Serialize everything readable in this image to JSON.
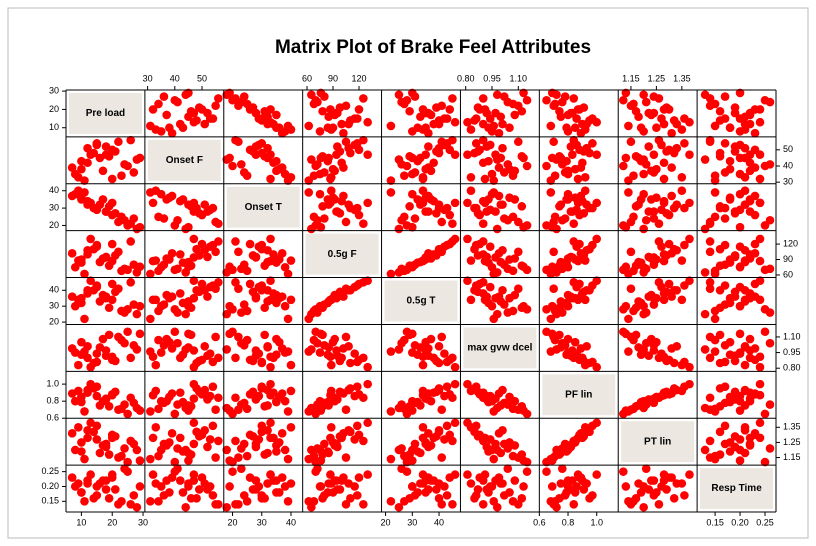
{
  "chart_data": {
    "type": "scatter_matrix",
    "title": "Matrix Plot of Brake Feel Attributes",
    "color": "#ff0000",
    "variables": [
      {
        "name": "Pre load",
        "lim": [
          5,
          30.6
        ],
        "ticks": [
          10,
          20,
          30
        ],
        "values": [
          8,
          10,
          12,
          14,
          16,
          18,
          20,
          22,
          25,
          28,
          27,
          9,
          11,
          13,
          15,
          17,
          19,
          21,
          24,
          26,
          7,
          10,
          12,
          23,
          15,
          18,
          29,
          20
        ]
      },
      {
        "name": "Onset F",
        "lim": [
          29,
          58
        ],
        "ticks": [
          30,
          40,
          50
        ],
        "values": [
          35,
          38,
          42,
          48,
          45,
          52,
          50,
          55,
          40,
          44,
          36,
          33,
          31,
          47,
          53,
          37,
          46,
          49,
          41,
          56,
          39,
          43,
          51,
          34,
          54,
          47,
          45,
          32
        ]
      },
      {
        "name": "Onset T",
        "lim": [
          17,
          44
        ],
        "ticks": [
          20,
          30,
          40
        ],
        "values": [
          38,
          36,
          34,
          30,
          32,
          28,
          26,
          22,
          20,
          18,
          24,
          40,
          39,
          33,
          29,
          35,
          31,
          27,
          23,
          21,
          37,
          35,
          32,
          25,
          30,
          28,
          19,
          33
        ]
      },
      {
        "name": "0.5g F",
        "lim": [
          55,
          146
        ],
        "ticks": [
          60,
          90,
          120
        ],
        "values": [
          75,
          90,
          100,
          110,
          85,
          95,
          120,
          105,
          70,
          65,
          80,
          88,
          62,
          130,
          115,
          92,
          78,
          98,
          72,
          125,
          102,
          84,
          108,
          68,
          118,
          94,
          76,
          87
        ]
      },
      {
        "name": "0.5g T",
        "lim": [
          18.5,
          48
        ],
        "ticks": [
          20,
          30,
          40
        ],
        "values": [
          30,
          35,
          38,
          40,
          33,
          36,
          44,
          41,
          28,
          25,
          31,
          34,
          22,
          46,
          42,
          37,
          29,
          39,
          26,
          45,
          36,
          32,
          40,
          27,
          43,
          35,
          30,
          34
        ]
      },
      {
        "name": "max gvw dcel",
        "lim": [
          0.77,
          1.22
        ],
        "ticks": [
          {
            "value": 0.8,
            "label": "0.80"
          },
          0.95,
          {
            "value": 1.1,
            "label": "1.10"
          }
        ],
        "values": [
          0.95,
          1.05,
          0.9,
          0.85,
          1.0,
          0.92,
          0.88,
          1.1,
          1.15,
          0.98,
          1.02,
          0.83,
          0.96,
          0.81,
          0.94,
          1.08,
          1.12,
          0.87,
          1.04,
          0.9,
          0.99,
          0.93,
          1.01,
          1.07,
          0.86,
          0.97,
          1.13,
          0.91
        ]
      },
      {
        "name": "PF lin",
        "lim": [
          0.6,
          1.15
        ],
        "ticks": [
          0.6,
          0.8,
          {
            "value": 1,
            "label": "1.0"
          }
        ],
        "values": [
          0.8,
          0.85,
          0.9,
          0.95,
          0.75,
          0.82,
          0.88,
          0.7,
          0.65,
          0.72,
          0.78,
          0.92,
          0.68,
          1.0,
          0.86,
          0.8,
          0.74,
          0.91,
          0.76,
          0.84,
          0.89,
          0.79,
          0.93,
          0.71,
          0.97,
          0.83,
          0.69,
          0.87
        ]
      },
      {
        "name": "PT lin",
        "lim": [
          1.1,
          1.41
        ],
        "ticks": [
          1.15,
          1.25,
          1.35
        ],
        "values": [
          1.2,
          1.25,
          1.28,
          1.32,
          1.18,
          1.22,
          1.3,
          1.15,
          1.12,
          1.2,
          1.24,
          1.35,
          1.14,
          1.38,
          1.27,
          1.23,
          1.17,
          1.29,
          1.21,
          1.26,
          1.31,
          1.19,
          1.33,
          1.16,
          1.36,
          1.24,
          1.13,
          1.28
        ]
      },
      {
        "name": "Resp Time",
        "lim": [
          0.114,
          0.272
        ],
        "ticks": [
          0.15,
          {
            "value": 0.2,
            "label": "0.20"
          },
          0.25
        ],
        "values": [
          0.2,
          0.18,
          0.22,
          0.16,
          0.21,
          0.19,
          0.23,
          0.14,
          0.25,
          0.13,
          0.17,
          0.21,
          0.15,
          0.24,
          0.2,
          0.22,
          0.16,
          0.19,
          0.26,
          0.14,
          0.23,
          0.18,
          0.21,
          0.15,
          0.17,
          0.22,
          0.2,
          0.24
        ]
      }
    ]
  }
}
